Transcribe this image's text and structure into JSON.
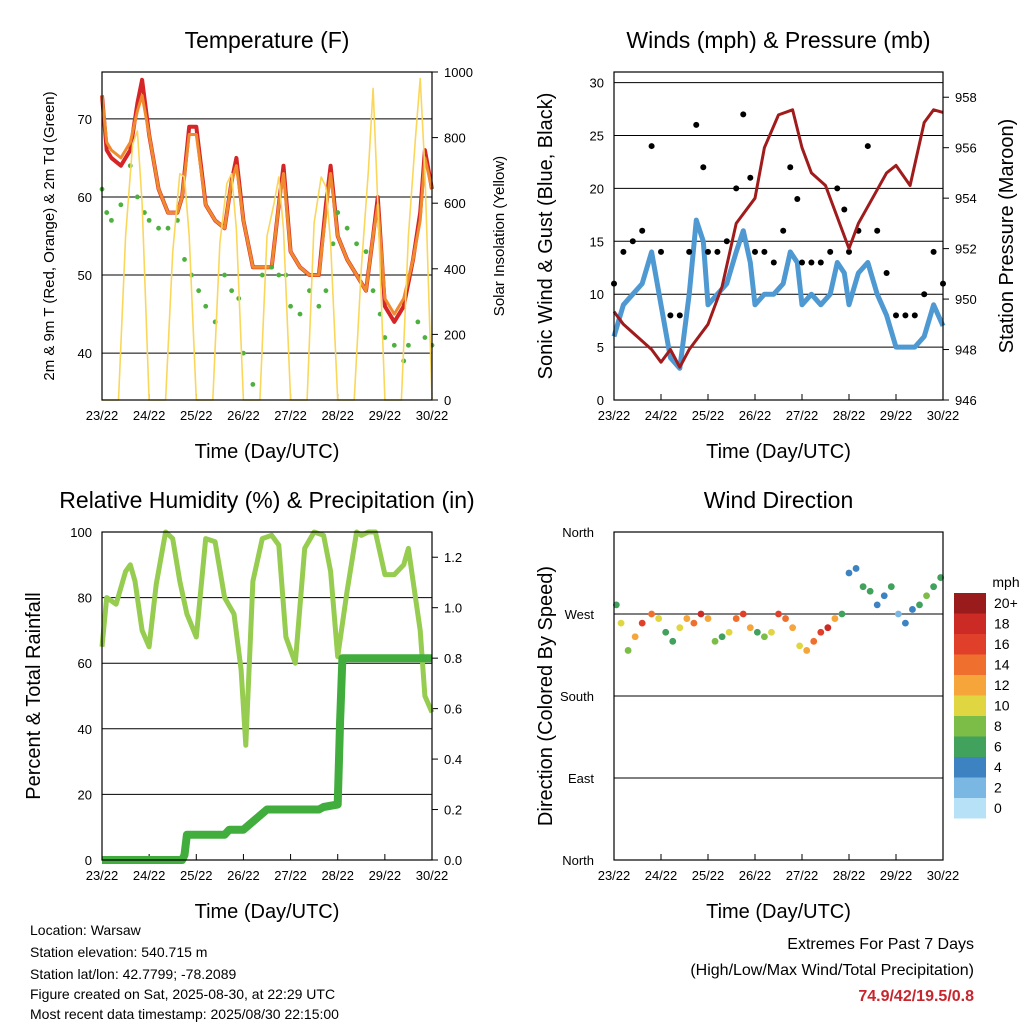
{
  "colors": {
    "t2m": "#d62526",
    "t9m": "#f08a2e",
    "td": "#4eb13f",
    "solar": "#fad75a",
    "wind": "#4f99d3",
    "gust": "#000000",
    "pressure": "#a01c1c",
    "rh": "#96cc50",
    "precip": "#41ad3d",
    "extremes": "#c8262e"
  },
  "info": {
    "location": "Location: Warsaw",
    "elevation": "Station elevation: 540.715 m",
    "latlon": "Station lat/lon: 42.7799; -78.2089",
    "created": "Figure created on Sat, 2025-08-30, at 22:29 UTC",
    "latest": "Most recent data timestamp: 2025/08/30 22:15:00"
  },
  "extremes": {
    "title": "Extremes For Past 7 Days",
    "subtitle": "(High/Low/Max Wind/Total Precipitation)",
    "values": "74.9/42/19.5/0.8"
  },
  "chart_data": [
    {
      "id": "temperature",
      "type": "line",
      "title": "Temperature (F)",
      "xlabel": "Time (Day/UTC)",
      "ylabel": "2m & 9m T (Red, Orange) & 2m Td (Green)",
      "ylabel_right": "Solar Insolation (Yellow)",
      "x_ticks": [
        "23/22",
        "24/22",
        "25/22",
        "26/22",
        "27/22",
        "28/22",
        "29/22",
        "30/22"
      ],
      "xlim": [
        0,
        7
      ],
      "ylim": [
        34,
        76
      ],
      "y_ticks": [
        40,
        50,
        60,
        70
      ],
      "ylim_right": [
        0,
        1000
      ],
      "y_ticks_right": [
        0,
        200,
        400,
        600,
        800,
        1000
      ],
      "grid": "horizontal",
      "series": [
        {
          "key": "t2m",
          "style": "line",
          "x": [
            0,
            0.1,
            0.2,
            0.4,
            0.6,
            0.75,
            0.85,
            1.0,
            1.2,
            1.4,
            1.6,
            1.7,
            1.85,
            2.0,
            2.2,
            2.4,
            2.6,
            2.75,
            2.85,
            3.0,
            3.2,
            3.4,
            3.6,
            3.75,
            3.85,
            4.0,
            4.2,
            4.4,
            4.6,
            4.75,
            4.85,
            5.0,
            5.2,
            5.4,
            5.6,
            5.75,
            5.85,
            6.0,
            6.2,
            6.4,
            6.6,
            6.75,
            6.85,
            7.0
          ],
          "y": [
            73,
            66,
            65,
            64,
            66,
            72,
            75,
            68,
            61,
            58,
            58,
            60,
            69,
            69,
            59,
            57,
            56,
            62,
            65,
            57,
            51,
            51,
            51,
            59,
            64,
            53,
            51,
            50,
            50,
            59,
            64,
            55,
            52,
            50,
            48,
            55,
            60,
            46,
            44,
            46,
            52,
            58,
            66,
            61
          ]
        },
        {
          "key": "t9m",
          "style": "line",
          "x": [
            0,
            0.1,
            0.2,
            0.4,
            0.6,
            0.75,
            0.85,
            1.0,
            1.2,
            1.4,
            1.6,
            1.7,
            1.85,
            2.0,
            2.2,
            2.4,
            2.6,
            2.75,
            2.85,
            3.0,
            3.2,
            3.4,
            3.6,
            3.75,
            3.85,
            4.0,
            4.2,
            4.4,
            4.6,
            4.75,
            4.85,
            5.0,
            5.2,
            5.4,
            5.6,
            5.75,
            5.85,
            6.0,
            6.2,
            6.4,
            6.6,
            6.75,
            6.85,
            7.0
          ],
          "y": [
            73,
            67,
            66,
            65,
            67,
            71,
            73,
            68,
            61,
            58,
            58,
            60,
            68,
            68,
            59,
            57,
            56,
            62,
            64,
            57,
            51,
            51,
            51,
            59,
            63,
            53,
            51,
            50,
            50,
            58,
            63,
            55,
            52,
            50,
            48,
            55,
            59,
            47,
            45,
            47,
            52,
            57,
            65,
            61
          ]
        },
        {
          "key": "td",
          "style": "dots",
          "x": [
            0,
            0.1,
            0.2,
            0.4,
            0.6,
            0.75,
            0.9,
            1.0,
            1.2,
            1.4,
            1.6,
            1.75,
            1.9,
            2.05,
            2.2,
            2.4,
            2.6,
            2.75,
            2.9,
            3.0,
            3.2,
            3.4,
            3.6,
            3.75,
            3.9,
            4.0,
            4.2,
            4.4,
            4.6,
            4.75,
            4.9,
            5.0,
            5.2,
            5.4,
            5.6,
            5.75,
            5.9,
            6.0,
            6.2,
            6.4,
            6.5,
            6.7,
            6.85,
            7.0
          ],
          "y": [
            61,
            58,
            57,
            59,
            64,
            60,
            58,
            57,
            56,
            56,
            57,
            52,
            50,
            48,
            46,
            44,
            50,
            48,
            47,
            40,
            36,
            50,
            51,
            50,
            50,
            46,
            45,
            48,
            46,
            48,
            54,
            58,
            56,
            54,
            53,
            48,
            45,
            42,
            41,
            39,
            41,
            44,
            42,
            41
          ]
        },
        {
          "key": "solar",
          "axis": "right",
          "style": "line",
          "x": [
            0,
            0.35,
            0.5,
            0.65,
            0.75,
            0.85,
            1.0,
            1.35,
            1.5,
            1.65,
            1.75,
            1.85,
            2.0,
            2.35,
            2.5,
            2.65,
            2.75,
            2.85,
            3.0,
            3.35,
            3.5,
            3.65,
            3.75,
            3.85,
            4.0,
            4.35,
            4.5,
            4.65,
            4.75,
            4.85,
            5.0,
            5.35,
            5.5,
            5.65,
            5.75,
            5.85,
            6.0,
            6.35,
            6.5,
            6.65,
            6.75,
            6.85,
            7.0
          ],
          "y": [
            0,
            0,
            500,
            780,
            820,
            600,
            0,
            0,
            450,
            690,
            680,
            500,
            0,
            0,
            480,
            660,
            690,
            520,
            0,
            0,
            500,
            600,
            680,
            520,
            0,
            0,
            540,
            680,
            650,
            480,
            0,
            0,
            400,
            700,
            950,
            600,
            0,
            0,
            500,
            800,
            980,
            700,
            0
          ]
        }
      ]
    },
    {
      "id": "winds",
      "type": "line",
      "title": "Winds (mph) & Pressure (mb)",
      "xlabel": "Time (Day/UTC)",
      "ylabel": "Sonic Wind & Gust (Blue, Black)",
      "ylabel_right": "Station Pressure (Maroon)",
      "x_ticks": [
        "23/22",
        "24/22",
        "25/22",
        "26/22",
        "27/22",
        "28/22",
        "29/22",
        "30/22"
      ],
      "xlim": [
        0,
        7
      ],
      "ylim": [
        0,
        31
      ],
      "y_ticks": [
        0,
        5,
        10,
        15,
        20,
        25,
        30
      ],
      "ylim_right": [
        946,
        959
      ],
      "y_ticks_right": [
        946,
        948,
        950,
        952,
        954,
        956,
        958
      ],
      "grid": "horizontal",
      "series": [
        {
          "key": "wind",
          "style": "thickline",
          "x": [
            0,
            0.2,
            0.4,
            0.6,
            0.8,
            1.0,
            1.2,
            1.4,
            1.6,
            1.75,
            1.9,
            2.0,
            2.2,
            2.4,
            2.6,
            2.75,
            2.9,
            3.0,
            3.2,
            3.4,
            3.6,
            3.75,
            3.9,
            4.0,
            4.2,
            4.4,
            4.6,
            4.75,
            4.9,
            5.0,
            5.2,
            5.4,
            5.6,
            5.8,
            6.0,
            6.2,
            6.4,
            6.6,
            6.8,
            7.0
          ],
          "y": [
            6,
            9,
            10,
            11,
            14,
            9,
            4,
            3,
            10,
            17,
            15,
            9,
            10,
            11,
            14,
            16,
            13,
            9,
            10,
            10,
            11,
            14,
            13,
            9,
            10,
            9,
            10,
            13,
            12,
            9,
            12,
            13,
            10,
            8,
            5,
            5,
            5,
            6,
            9,
            7
          ]
        },
        {
          "key": "gust",
          "style": "dots",
          "x": [
            0,
            0.2,
            0.4,
            0.6,
            0.8,
            1.0,
            1.2,
            1.4,
            1.6,
            1.75,
            1.9,
            2.0,
            2.2,
            2.4,
            2.6,
            2.75,
            2.9,
            3.0,
            3.2,
            3.4,
            3.6,
            3.75,
            3.9,
            4.0,
            4.2,
            4.4,
            4.6,
            4.75,
            4.9,
            5.0,
            5.2,
            5.4,
            5.6,
            5.8,
            6.0,
            6.2,
            6.4,
            6.6,
            6.8,
            7.0
          ],
          "y": [
            11,
            14,
            15,
            16,
            24,
            14,
            8,
            8,
            14,
            26,
            22,
            14,
            14,
            15,
            20,
            27,
            21,
            14,
            14,
            13,
            16,
            22,
            19,
            13,
            13,
            13,
            14,
            20,
            18,
            14,
            16,
            24,
            16,
            12,
            8,
            8,
            8,
            10,
            14,
            11
          ]
        },
        {
          "key": "pressure",
          "axis": "right",
          "style": "line",
          "x": [
            0,
            0.2,
            0.5,
            0.8,
            1.0,
            1.2,
            1.4,
            1.6,
            2.0,
            2.3,
            2.6,
            3.0,
            3.2,
            3.5,
            3.8,
            4.0,
            4.2,
            4.5,
            4.8,
            5.0,
            5.2,
            5.5,
            5.8,
            6.0,
            6.3,
            6.6,
            6.8,
            7.0
          ],
          "y": [
            949.5,
            949,
            948.5,
            948,
            947.5,
            948,
            947.3,
            948,
            949,
            950.5,
            953,
            954,
            956,
            957.3,
            957.5,
            956,
            955,
            954.5,
            953,
            952,
            953,
            954,
            955,
            955.3,
            954.5,
            957,
            957.5,
            957.4
          ]
        }
      ]
    },
    {
      "id": "humidity",
      "type": "line",
      "title": "Relative Humidity (%) & Precipitation (in)",
      "xlabel": "Time (Day/UTC)",
      "ylabel": "Percent & Total Rainfall",
      "x_ticks": [
        "23/22",
        "24/22",
        "25/22",
        "26/22",
        "27/22",
        "28/22",
        "29/22",
        "30/22"
      ],
      "xlim": [
        0,
        7
      ],
      "ylim": [
        0,
        100
      ],
      "y_ticks": [
        0,
        20,
        40,
        60,
        80,
        100
      ],
      "ylim_right": [
        0,
        1.3
      ],
      "y_ticks_right": [
        0.0,
        0.2,
        0.4,
        0.6,
        0.8,
        1.0,
        1.2
      ],
      "grid": "horizontal",
      "series": [
        {
          "key": "rh",
          "style": "thickline",
          "x": [
            0,
            0.1,
            0.3,
            0.5,
            0.6,
            0.7,
            0.85,
            1.0,
            1.15,
            1.35,
            1.5,
            1.65,
            1.8,
            2.0,
            2.2,
            2.4,
            2.6,
            2.8,
            2.95,
            3.05,
            3.2,
            3.4,
            3.6,
            3.75,
            3.9,
            4.1,
            4.3,
            4.5,
            4.7,
            4.85,
            5.0,
            5.2,
            5.4,
            5.5,
            5.65,
            5.8,
            6.0,
            6.2,
            6.4,
            6.5,
            6.6,
            6.75,
            6.85,
            7.0
          ],
          "y": [
            65,
            80,
            78,
            88,
            90,
            85,
            70,
            65,
            84,
            100,
            98,
            85,
            75,
            68,
            98,
            97,
            80,
            75,
            58,
            35,
            85,
            98,
            99,
            96,
            68,
            60,
            95,
            100,
            99,
            88,
            62,
            82,
            100,
            99,
            100,
            100,
            87,
            87,
            90,
            95,
            85,
            70,
            50,
            45
          ]
        },
        {
          "key": "precip",
          "axis": "right",
          "style": "thickline",
          "x": [
            0,
            1.7,
            1.75,
            1.8,
            2.0,
            2.6,
            2.7,
            3.0,
            3.5,
            4.0,
            4.6,
            4.7,
            5.0,
            5.05,
            5.1,
            5.5,
            6.0,
            6.5,
            7.0
          ],
          "y": [
            0,
            0,
            0.02,
            0.1,
            0.1,
            0.1,
            0.12,
            0.12,
            0.2,
            0.2,
            0.2,
            0.21,
            0.22,
            0.55,
            0.8,
            0.8,
            0.8,
            0.8,
            0.8
          ]
        }
      ]
    },
    {
      "id": "wind_direction",
      "type": "scatter",
      "title": "Wind Direction",
      "xlabel": "Time (Day/UTC)",
      "ylabel": "Direction (Colored By Speed)",
      "x_ticks": [
        "23/22",
        "24/22",
        "25/22",
        "26/22",
        "27/22",
        "28/22",
        "29/22",
        "30/22"
      ],
      "xlim": [
        0,
        7
      ],
      "y_ticks": [
        "North",
        "East",
        "South",
        "West",
        "North"
      ],
      "ylim": [
        0,
        360
      ],
      "grid": "horizontal",
      "colorbar": {
        "title": "mph",
        "labels": [
          "0",
          "2",
          "4",
          "6",
          "8",
          "10",
          "12",
          "14",
          "16",
          "18",
          "20+"
        ],
        "colors": [
          "#b6e1f7",
          "#7ab8e3",
          "#3d83c2",
          "#41a25d",
          "#7cbd47",
          "#e0d641",
          "#f6a53b",
          "#ef6f2e",
          "#e0402a",
          "#cc2a24",
          "#9a1b1b"
        ]
      },
      "x": [
        0.05,
        0.15,
        0.3,
        0.45,
        0.6,
        0.8,
        0.95,
        1.1,
        1.25,
        1.4,
        1.55,
        1.7,
        1.85,
        2.0,
        2.15,
        2.3,
        2.45,
        2.6,
        2.75,
        2.9,
        3.05,
        3.2,
        3.35,
        3.5,
        3.65,
        3.8,
        3.95,
        4.1,
        4.25,
        4.4,
        4.55,
        4.7,
        4.85,
        5.0,
        5.15,
        5.3,
        5.45,
        5.6,
        5.75,
        5.9,
        6.05,
        6.2,
        6.35,
        6.5,
        6.65,
        6.8,
        6.95
      ],
      "y": [
        280,
        260,
        230,
        245,
        260,
        270,
        265,
        250,
        240,
        255,
        265,
        260,
        270,
        265,
        240,
        245,
        250,
        265,
        270,
        255,
        250,
        245,
        250,
        270,
        265,
        255,
        235,
        230,
        240,
        250,
        255,
        265,
        270,
        315,
        320,
        300,
        295,
        280,
        290,
        300,
        270,
        260,
        275,
        280,
        290,
        300,
        310
      ],
      "values": [
        6,
        9,
        8,
        12,
        16,
        14,
        10,
        6,
        5,
        9,
        12,
        14,
        18,
        12,
        8,
        6,
        10,
        14,
        16,
        12,
        6,
        8,
        10,
        16,
        14,
        12,
        10,
        12,
        14,
        16,
        18,
        12,
        6,
        3,
        4,
        5,
        6,
        4,
        3,
        5,
        2,
        4,
        3,
        6,
        8,
        6,
        5
      ]
    }
  ]
}
